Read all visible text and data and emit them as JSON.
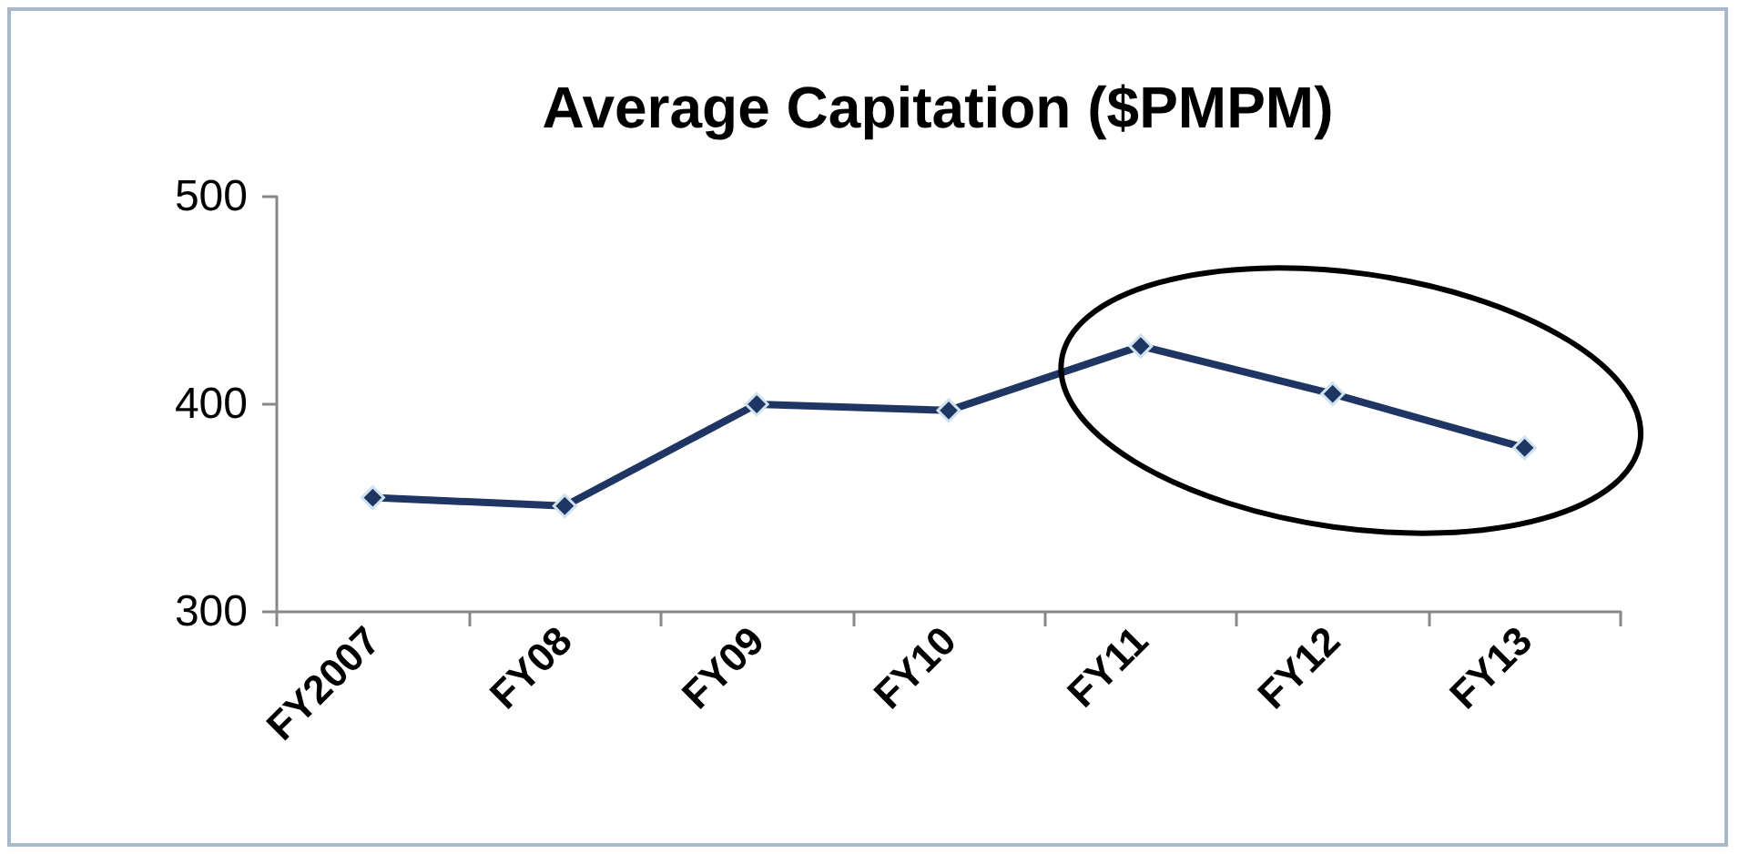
{
  "chart_data": {
    "type": "line",
    "title": "Average Capitation ($PMPM)",
    "categories": [
      "FY2007",
      "FY08",
      "FY09",
      "FY10",
      "FY11",
      "FY12",
      "FY13"
    ],
    "series": [
      {
        "color": "#1f3564",
        "values": [
          355,
          351,
          400,
          397,
          428,
          405,
          379
        ]
      }
    ],
    "ylim": [
      300,
      500
    ],
    "yticks": [
      300,
      400,
      500
    ],
    "grid": false,
    "marker": "diamond",
    "line_style": "solid"
  }
}
